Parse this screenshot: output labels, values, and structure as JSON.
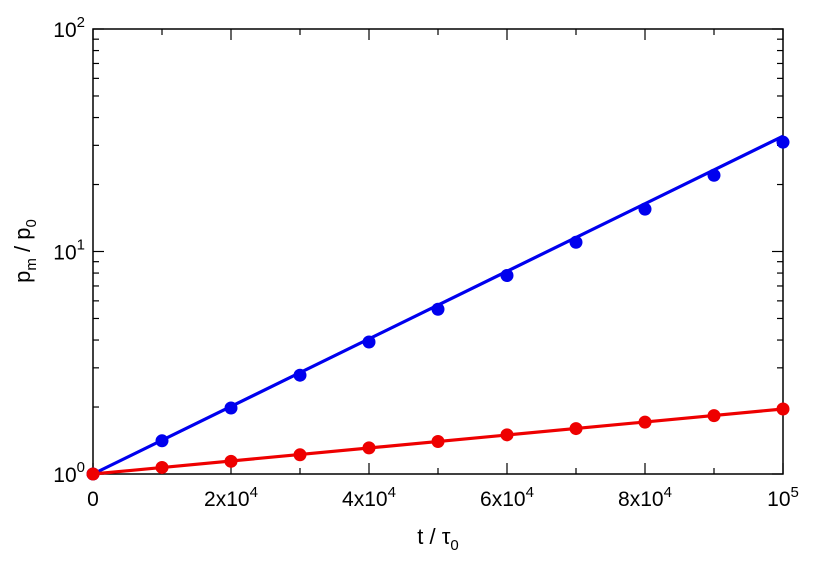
{
  "chart_data": {
    "type": "line",
    "x": [
      0,
      10000,
      20000,
      30000,
      40000,
      50000,
      60000,
      70000,
      80000,
      90000,
      100000
    ],
    "xlim": [
      0,
      100000
    ],
    "ylim": [
      1,
      100
    ],
    "yscale": "log",
    "grid": false,
    "legend": "none",
    "x_ticks": [
      {
        "value": 0,
        "base": "0",
        "exp": ""
      },
      {
        "value": 20000,
        "base": "2x10",
        "exp": "4"
      },
      {
        "value": 40000,
        "base": "4x10",
        "exp": "4"
      },
      {
        "value": 60000,
        "base": "6x10",
        "exp": "4"
      },
      {
        "value": 80000,
        "base": "8x10",
        "exp": "4"
      },
      {
        "value": 100000,
        "base": "10",
        "exp": "5"
      }
    ],
    "y_ticks": [
      {
        "value": 1,
        "base": "10",
        "exp": "0"
      },
      {
        "value": 10,
        "base": "10",
        "exp": "1"
      },
      {
        "value": 100,
        "base": "10",
        "exp": "2"
      }
    ],
    "xlabel": {
      "main": "t / τ",
      "sub": "0"
    },
    "ylabel": {
      "p1": "p",
      "s1": "m",
      "p2": " / p",
      "s2": "0"
    },
    "series": [
      {
        "color": "#0000ee",
        "points": [
          1.0,
          1.41,
          1.98,
          2.78,
          3.92,
          5.5,
          7.8,
          11.0,
          15.5,
          22.0,
          31.0
        ],
        "fit": [
          1.0,
          33.0
        ]
      },
      {
        "color": "#ee0000",
        "points": [
          1.0,
          1.07,
          1.14,
          1.22,
          1.31,
          1.4,
          1.5,
          1.6,
          1.71,
          1.83,
          1.96
        ],
        "fit": [
          1.0,
          1.96
        ]
      }
    ]
  }
}
